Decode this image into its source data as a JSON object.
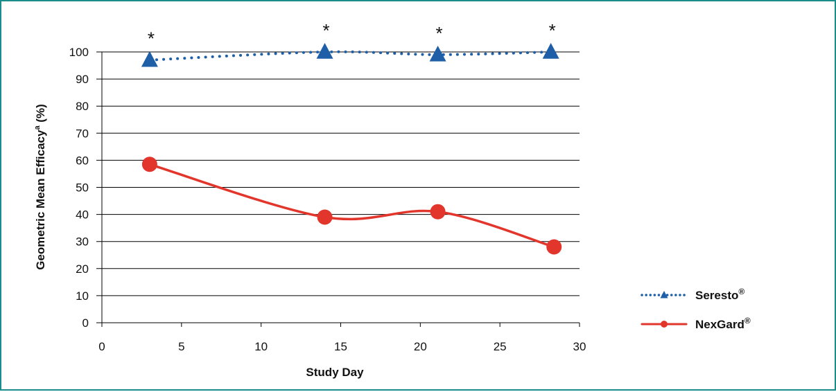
{
  "chart_data": {
    "type": "line",
    "title": "",
    "xlabel": "Study Day",
    "ylabel": "Geometric Mean Efficacy",
    "ylabel_sup": "a",
    "ylabel_suffix": " (%)",
    "xlim": [
      0,
      30
    ],
    "ylim": [
      0,
      100
    ],
    "x_ticks": [
      0,
      5,
      10,
      15,
      20,
      25,
      30
    ],
    "y_ticks": [
      0,
      10,
      20,
      30,
      40,
      50,
      60,
      70,
      80,
      90,
      100
    ],
    "grid": "horizontal",
    "legend_position": "right",
    "series": [
      {
        "name": "Seresto",
        "name_sup": "®",
        "color": "#1f5fa8",
        "style": "dotted",
        "marker": "triangle",
        "x": [
          3,
          14,
          21.1,
          28.2
        ],
        "values": [
          97,
          100,
          99,
          100
        ],
        "annotations": [
          "*",
          "*",
          "*",
          "*"
        ]
      },
      {
        "name": "NexGard",
        "name_sup": "®",
        "color": "#e2352b",
        "style": "solid",
        "marker": "circle",
        "x": [
          3,
          14,
          21.1,
          28.4
        ],
        "values": [
          58.5,
          39,
          41,
          28
        ]
      }
    ]
  }
}
